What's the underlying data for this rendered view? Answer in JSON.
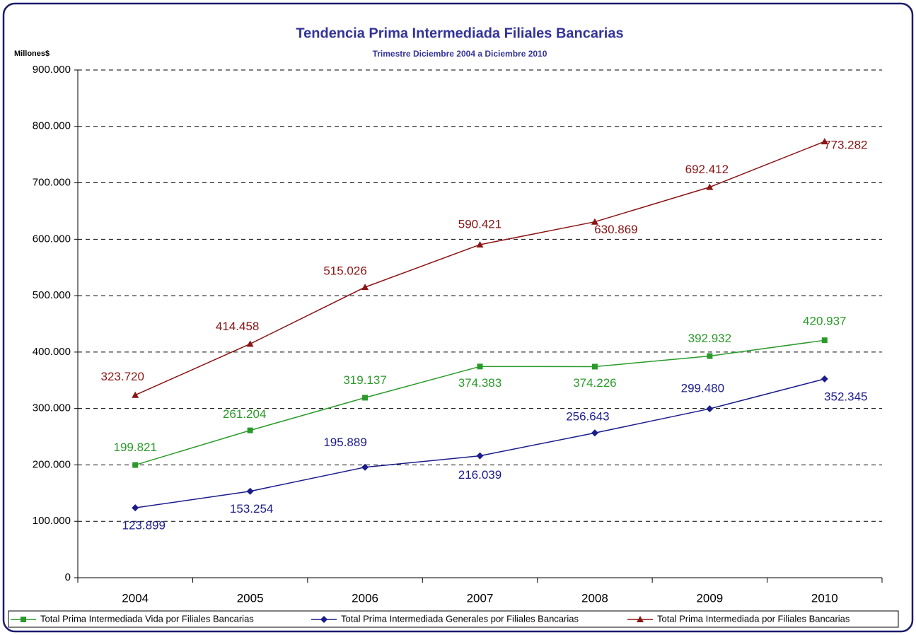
{
  "chart_data": {
    "type": "line",
    "title": "Tendencia Prima Intermediada Filiales Bancarias",
    "subtitle": "Trimestre Diciembre 2004 a Diciembre 2010",
    "y_axis_label": "Millones$",
    "categories": [
      "2004",
      "2005",
      "2006",
      "2007",
      "2008",
      "2009",
      "2010"
    ],
    "series": [
      {
        "name": "Total Prima Intermediada  Vida por Filiales Bancarias",
        "color": "#2a9a2a",
        "marker": "square",
        "values": [
          199821,
          261204,
          319137,
          374383,
          374226,
          392932,
          420937
        ],
        "value_labels": [
          "199.821",
          "261.204",
          "319.137",
          "374.383",
          "374.226",
          "392.932",
          "420.937"
        ]
      },
      {
        "name": "Total Prima Intermediada Generales por Filiales Bancarias",
        "color": "#1c1c8c",
        "marker": "diamond",
        "values": [
          123899,
          153254,
          195889,
          216039,
          256643,
          299480,
          352345
        ],
        "value_labels": [
          "123.899",
          "153.254",
          "195.889",
          "216.039",
          "256.643",
          "299.480",
          "352.345"
        ]
      },
      {
        "name": "Total Prima Intermediada por Filiales Bancarias",
        "color": "#8b1414",
        "marker": "triangle",
        "values": [
          323720,
          414458,
          515026,
          590421,
          630869,
          692412,
          773282
        ],
        "value_labels": [
          "323.720",
          "414.458",
          "515.026",
          "590.421",
          "630.869",
          "692.412",
          "773.282"
        ]
      }
    ],
    "ylim": [
      0,
      900000
    ],
    "yticks": [
      0,
      {
        "value": 100000,
        "label": "100.000"
      },
      {
        "value": 200000,
        "label": "200.000"
      },
      {
        "value": 300000,
        "label": "300.000"
      },
      {
        "value": 400000,
        "label": "400.000"
      },
      {
        "value": 500000,
        "label": "500.000"
      },
      {
        "value": 600000,
        "label": "600.000"
      },
      {
        "value": 700000,
        "label": "700.000"
      },
      {
        "value": 800000,
        "label": "800.000"
      },
      {
        "value": 900000,
        "label": "900.000"
      }
    ],
    "grid": true,
    "legend": "bottom"
  }
}
